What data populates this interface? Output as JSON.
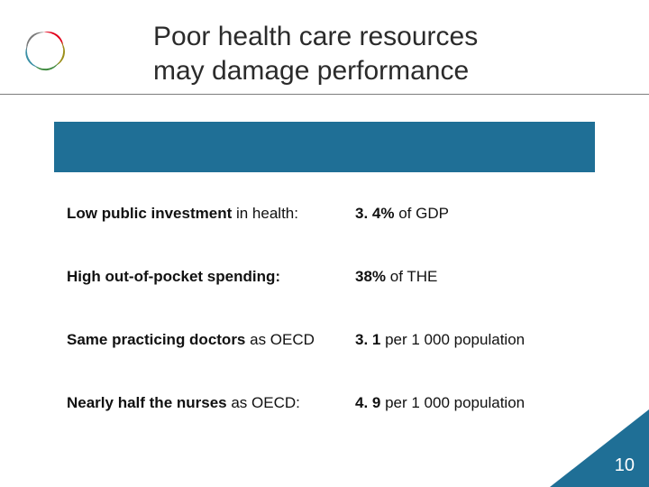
{
  "colors": {
    "brand_blue": "#1f6f96",
    "row_bg": "#ffffff",
    "row_border": "#ffffff",
    "title_color": "#2b2b2b",
    "rule_color": "#7d7d7d",
    "corner_blue": "#1f6f96",
    "pagenum_color": "#ffffff",
    "logo": {
      "red": "#e2001a",
      "olive": "#9c8f1a",
      "green": "#3f8a3f",
      "teal": "#3a8fa5",
      "gray": "#7a7a7a"
    }
  },
  "title": {
    "line1": "Poor health care resources",
    "line2": "may damage performance"
  },
  "rows": [
    {
      "left_bold": "Low public investment",
      "left_rest": " in health:",
      "right_bold": "3. 4%",
      "right_rest": " of GDP"
    },
    {
      "left_bold": "High out-of-pocket spending:",
      "left_rest": "",
      "right_bold": "38%",
      "right_rest": " of THE"
    },
    {
      "left_bold": "Same practicing doctors",
      "left_rest": " as OECD",
      "right_bold": "3. 1",
      "right_rest": " per 1 000 population"
    },
    {
      "left_bold": "Nearly half the nurses",
      "left_rest": " as OECD:",
      "right_bold": "4. 9",
      "right_rest": " per 1 000 population"
    }
  ],
  "page_number": "10"
}
